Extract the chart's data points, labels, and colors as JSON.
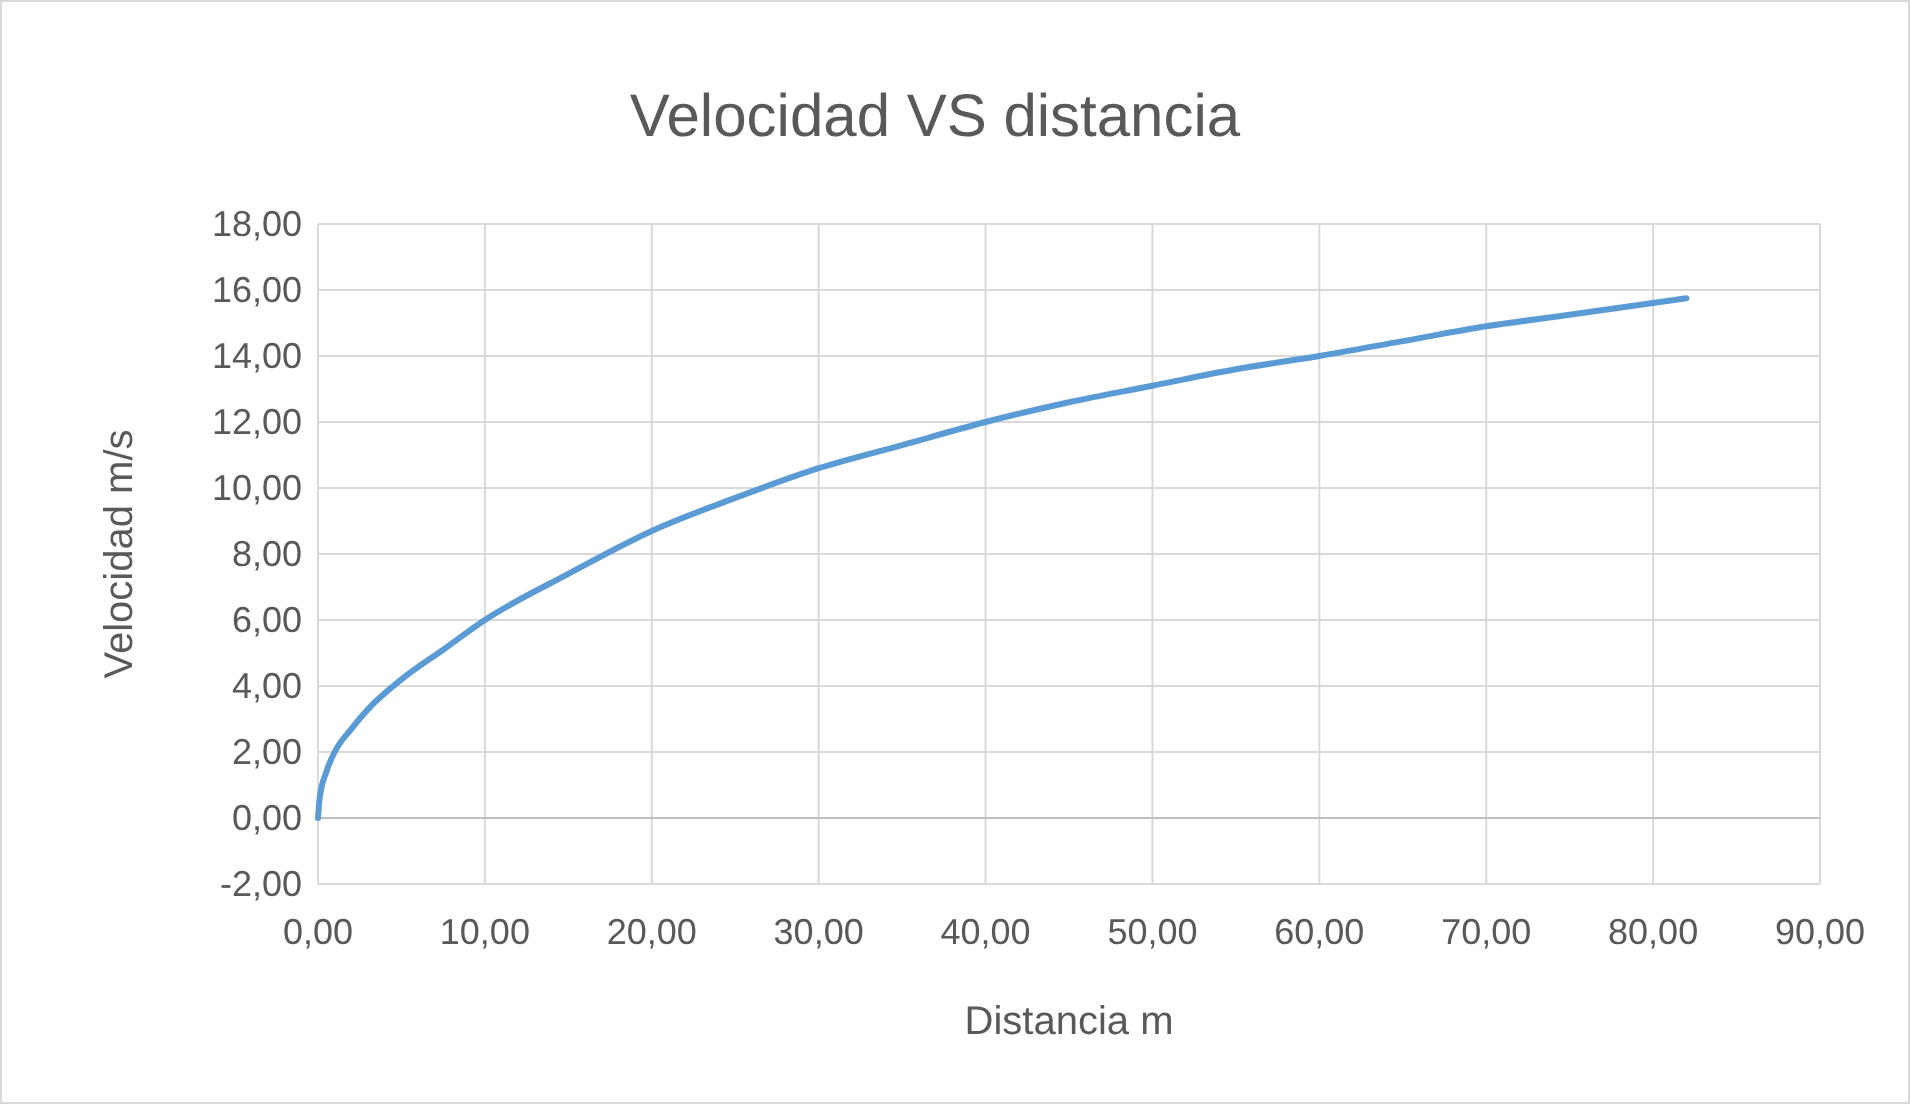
{
  "chart_data": {
    "type": "line",
    "title": "Velocidad VS distancia",
    "xlabel": "Distancia m",
    "ylabel": "Velocidad m/s",
    "x": [
      0,
      0.1,
      0.5,
      1,
      2,
      3,
      5,
      7.5,
      10,
      15,
      20,
      25,
      30,
      35,
      40,
      45,
      50,
      55,
      60,
      65,
      70,
      75,
      82
    ],
    "series": [
      {
        "color": "#5b9bd5",
        "values": [
          0,
          0.6,
          1.4,
          2,
          2.7,
          3.3,
          4.2,
          5.1,
          6,
          7.4,
          8.7,
          9.7,
          10.6,
          11.3,
          12,
          12.6,
          13.1,
          13.6,
          14,
          14.45,
          14.9,
          15.25,
          15.75
        ]
      }
    ],
    "xlim": [
      0,
      90
    ],
    "xticks": [
      {
        "value": 0,
        "label": "0,00"
      },
      {
        "value": 10,
        "label": "10,00"
      },
      {
        "value": 20,
        "label": "20,00"
      },
      {
        "value": 30,
        "label": "30,00"
      },
      {
        "value": 40,
        "label": "40,00"
      },
      {
        "value": 50,
        "label": "50,00"
      },
      {
        "value": 60,
        "label": "60,00"
      },
      {
        "value": 70,
        "label": "70,00"
      },
      {
        "value": 80,
        "label": "80,00"
      },
      {
        "value": 90,
        "label": "90,00"
      }
    ],
    "ylim": [
      -2,
      18
    ],
    "yticks": [
      {
        "value": -2,
        "label": "-2,00"
      },
      {
        "value": 0,
        "label": "0,00"
      },
      {
        "value": 2,
        "label": "2,00"
      },
      {
        "value": 4,
        "label": "4,00"
      },
      {
        "value": 6,
        "label": "6,00"
      },
      {
        "value": 8,
        "label": "8,00"
      },
      {
        "value": 10,
        "label": "10,00"
      },
      {
        "value": 12,
        "label": "12,00"
      },
      {
        "value": 14,
        "label": "14,00"
      },
      {
        "value": 16,
        "label": "16,00"
      },
      {
        "value": 18,
        "label": "18,00"
      }
    ],
    "grid": true,
    "marker": "none",
    "line_style": "solid"
  }
}
